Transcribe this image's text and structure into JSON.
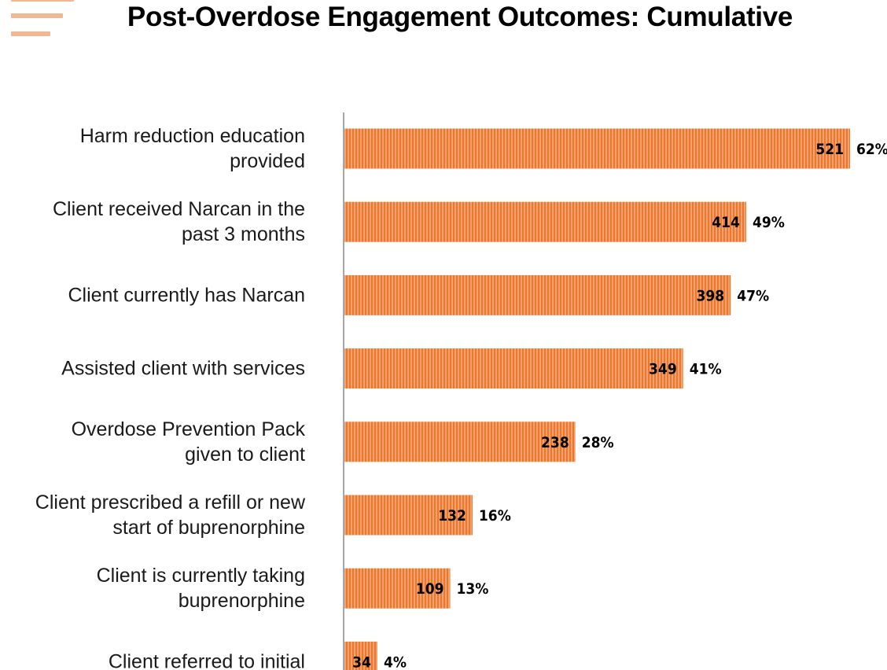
{
  "header": {
    "title": "Post-Overdose Engagement Outcomes: Cumulative",
    "menu_icon": "hamburger-icon"
  },
  "colors": {
    "bar_fill": "#f4a16b",
    "bar_stripe": "#e8782f",
    "axis": "#a6a6a6",
    "menu": "#f0b894"
  },
  "chart_data": {
    "type": "bar",
    "orientation": "horizontal",
    "title": "Post-Overdose Engagement Outcomes: Cumulative",
    "xlabel": "",
    "ylabel": "",
    "xlim": [
      0,
      521
    ],
    "grid": false,
    "categories": [
      [
        "Harm reduction education",
        "provided"
      ],
      [
        "Client received Narcan in the",
        "past 3 months"
      ],
      [
        "Client currently has Narcan"
      ],
      [
        "Assisted client with services"
      ],
      [
        "Overdose Prevention Pack",
        "given to client"
      ],
      [
        "Client prescribed a refill or new",
        "start of buprenorphine"
      ],
      [
        "Client is currently taking",
        "buprenorphine"
      ],
      [
        "Client referred to initial"
      ]
    ],
    "values": [
      521,
      414,
      398,
      349,
      238,
      132,
      109,
      34
    ],
    "percent_labels": [
      "62%",
      "49%",
      "47%",
      "41%",
      "28%",
      "16%",
      "13%",
      "4%"
    ]
  }
}
